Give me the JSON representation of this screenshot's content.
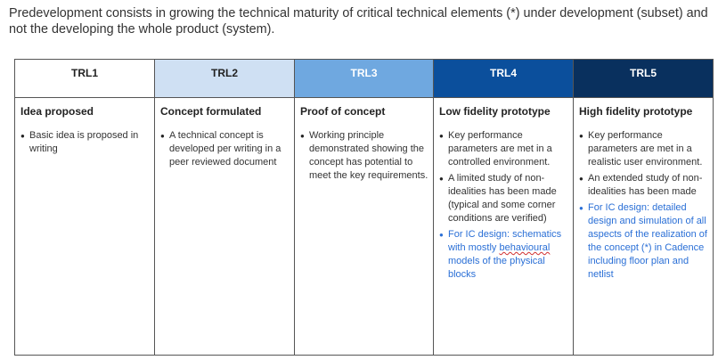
{
  "intro_text": "Predevelopment consists in growing the technical maturity of critical technical elements (*) under development (subset) and not the developing the whole product (system).",
  "columns": [
    {
      "header": "TRL1",
      "header_bg": "#ffffff",
      "header_color": "#222222",
      "title": "Idea proposed",
      "bullets": [
        {
          "text": "Basic idea is proposed in writing",
          "highlight": false
        }
      ]
    },
    {
      "header": "TRL2",
      "header_bg": "#cfe0f3",
      "header_color": "#222222",
      "title": "Concept formulated",
      "bullets": [
        {
          "text": "A technical concept is developed per writing in a  peer reviewed document",
          "highlight": false
        }
      ]
    },
    {
      "header": "TRL3",
      "header_bg": "#6fa8e0",
      "header_color": "#ffffff",
      "title": "Proof of concept",
      "bullets": [
        {
          "text": "Working principle demonstrated showing the concept has potential to meet the key requirements.",
          "highlight": false
        }
      ]
    },
    {
      "header": "TRL4",
      "header_bg": "#0b4f9c",
      "header_color": "#ffffff",
      "title": "Low fidelity prototype",
      "bullets": [
        {
          "text": "Key performance parameters are met in a controlled environment.",
          "highlight": false
        },
        {
          "text": "A limited study of non-idealities has been made (typical and some corner conditions  are verified)",
          "highlight": false
        },
        {
          "text_before": "For IC design: schematics with mostly ",
          "text_flagged": "behavioural",
          "text_after": " models of the physical blocks",
          "highlight": true
        }
      ]
    },
    {
      "header": "TRL5",
      "header_bg": "#09305e",
      "header_color": "#ffffff",
      "title": "High fidelity prototype",
      "bullets": [
        {
          "text": "Key performance parameters are met in a realistic user environment.",
          "highlight": false
        },
        {
          "text": "An extended study of non-idealities has been made",
          "highlight": false
        },
        {
          "text": "For IC design: detailed design and simulation of all aspects of the realization of the concept (*) in Cadence including floor plan and netlist",
          "highlight": true
        }
      ]
    }
  ],
  "colors": {
    "highlight_text": "#2a6fd6",
    "border": "#555555",
    "spellcheck_underline": "#d03030"
  }
}
